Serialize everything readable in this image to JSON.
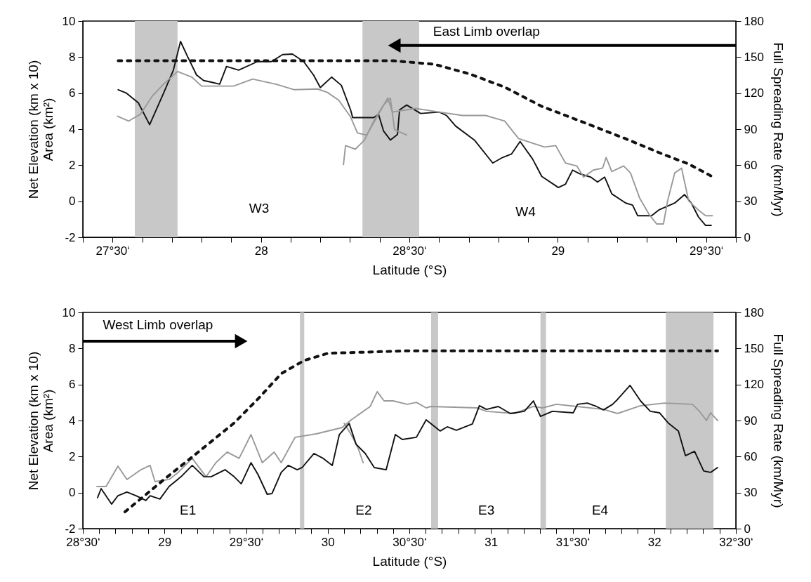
{
  "chart_data": [
    {
      "type": "line",
      "xlabel": "Latitude (°S)",
      "ylabel": "Net Elevation (km x 10)\nArea (km²)",
      "y2label": "Full Spreading Rate (km/Myr)",
      "xlim": [
        27.4,
        29.6
      ],
      "ylim": [
        -2,
        10
      ],
      "y2lim": [
        0,
        180
      ],
      "xticks": [
        {
          "value": 27.4,
          "label": null
        },
        {
          "value": 27.5,
          "label": "27°30‘"
        },
        {
          "value": 27.6,
          "label": null
        },
        {
          "value": 27.7,
          "label": null
        },
        {
          "value": 27.8,
          "label": null
        },
        {
          "value": 27.9,
          "label": null
        },
        28,
        {
          "value": 28.1,
          "label": null
        },
        {
          "value": 28.2,
          "label": null
        },
        {
          "value": 28.3,
          "label": null
        },
        {
          "value": 28.4,
          "label": null
        },
        {
          "value": 28.5,
          "label": "28°30‘"
        },
        {
          "value": 28.6,
          "label": null
        },
        {
          "value": 28.7,
          "label": null
        },
        {
          "value": 28.8,
          "label": null
        },
        {
          "value": 28.9,
          "label": null
        },
        29,
        {
          "value": 29.1,
          "label": null
        },
        {
          "value": 29.2,
          "label": null
        },
        {
          "value": 29.3,
          "label": null
        },
        {
          "value": 29.4,
          "label": null
        },
        {
          "value": 29.5,
          "label": "29°30‘"
        },
        {
          "value": 29.6,
          "label": null
        }
      ],
      "yticks": [
        -2,
        0,
        2,
        4,
        6,
        8,
        10
      ],
      "y2ticks": [
        0,
        30,
        60,
        90,
        120,
        150,
        180
      ],
      "line_style": "solid",
      "series": [
        {
          "color": "#111111",
          "x": [
            27.519,
            27.547,
            27.587,
            27.625,
            27.672,
            27.705,
            27.729,
            27.752,
            27.783,
            27.807,
            27.83,
            27.861,
            27.884,
            27.925,
            27.988,
            28.035,
            28.073,
            28.106,
            28.144,
            28.177,
            28.2,
            28.238,
            28.271,
            28.302,
            28.309,
            28.38,
            28.396,
            28.413,
            28.436,
            28.46,
            28.467,
            28.491,
            28.538,
            28.601,
            28.625,
            28.656,
            28.719,
            28.781,
            28.814,
            28.844,
            28.873,
            28.915,
            28.946,
            29.002,
            29.026,
            29.05,
            29.073,
            29.111,
            29.134,
            29.158,
            29.182,
            29.229,
            29.252,
            29.269,
            29.316,
            29.34,
            29.394,
            29.427,
            29.45,
            29.474,
            29.498,
            29.517
          ],
          "values": [
            6.19,
            6.0,
            5.46,
            4.25,
            6.0,
            7.28,
            8.87,
            8.06,
            7.01,
            6.7,
            6.62,
            6.5,
            7.48,
            7.28,
            7.75,
            7.75,
            8.14,
            8.17,
            7.75,
            7.01,
            6.31,
            6.89,
            6.43,
            5.07,
            4.64,
            4.64,
            4.83,
            3.9,
            3.4,
            3.71,
            5.07,
            5.34,
            4.87,
            4.95,
            4.76,
            4.17,
            3.4,
            2.12,
            2.43,
            2.62,
            3.32,
            2.35,
            1.38,
            0.76,
            0.95,
            1.73,
            1.53,
            1.34,
            1.07,
            1.34,
            0.41,
            -0.1,
            -0.21,
            -0.8,
            -0.8,
            -0.49,
            -0.1,
            0.37,
            -0.1,
            -0.87,
            -1.34,
            -1.34
          ]
        },
        {
          "color": "#999999",
          "x": [
            27.517,
            27.554,
            27.594,
            27.634,
            27.672,
            27.719,
            27.767,
            27.8,
            27.847,
            27.908,
            27.972,
            28.05,
            28.113,
            28.191,
            28.224,
            28.262,
            28.302,
            28.325,
            28.356,
            28.396,
            28.427,
            28.443,
            28.474,
            28.521,
            28.601,
            28.679,
            28.757,
            28.821,
            28.868,
            28.955,
            28.993,
            29.026,
            29.064,
            29.087,
            29.12,
            29.151,
            29.163,
            29.182,
            29.222,
            29.245,
            29.276,
            29.309,
            29.333,
            29.356,
            29.37,
            29.394,
            29.417,
            29.441,
            29.474,
            29.498,
            29.521
          ],
          "values": [
            4.72,
            4.45,
            4.83,
            5.84,
            6.5,
            7.2,
            6.89,
            6.39,
            6.39,
            6.39,
            6.78,
            6.5,
            6.19,
            6.23,
            6.04,
            5.61,
            4.68,
            3.79,
            3.67,
            4.83,
            5.73,
            4.95,
            5.03,
            5.15,
            4.95,
            4.76,
            4.76,
            4.45,
            3.48,
            3.01,
            3.09,
            2.12,
            1.96,
            1.34,
            1.73,
            1.84,
            2.43,
            1.65,
            1.96,
            1.57,
            0.17,
            -0.76,
            -1.26,
            -1.26,
            0.02,
            1.57,
            1.84,
            0.02,
            -0.49,
            -0.8,
            -0.8
          ]
        },
        {
          "color": "#999999",
          "x": [
            28.278,
            28.285,
            28.318,
            28.349,
            28.38,
            28.413,
            28.436,
            28.45,
            28.491
          ],
          "values": [
            2.04,
            3.09,
            2.89,
            3.4,
            4.45,
            5.34,
            5.73,
            3.98,
            3.67
          ]
        },
        {
          "color": "#111111",
          "axis": "y2",
          "line_style": "dotted",
          "x": [
            27.519,
            28.384,
            28.443,
            28.585,
            28.703,
            28.821,
            28.946,
            29.073,
            29.229,
            29.356,
            29.441,
            29.517
          ],
          "values": [
            147,
            147,
            147,
            144,
            136,
            125,
            109,
            97,
            82,
            69,
            61,
            51
          ]
        }
      ],
      "bands": [
        {
          "axis": "x",
          "from": 27.575,
          "to": 27.719,
          "color": "#c8c8c8"
        },
        {
          "axis": "x",
          "from": 28.342,
          "to": 28.533,
          "color": "#c8c8c8"
        }
      ],
      "annotations": [
        "East Limb overlap",
        "W3",
        "W4"
      ]
    },
    {
      "type": "line",
      "xlabel": "Latitude (°S)",
      "ylabel": "Net Elevation (km x 10)\nArea (km²)",
      "y2label": "Full Spreading Rate (km/Myr)",
      "xlim": [
        28.5,
        32.5
      ],
      "ylim": [
        -2,
        10
      ],
      "y2lim": [
        0,
        180
      ],
      "xticks": [
        {
          "value": 28.5,
          "label": "28°30‘"
        },
        {
          "value": 28.6,
          "label": null
        },
        {
          "value": 28.7,
          "label": null
        },
        {
          "value": 28.8,
          "label": null
        },
        {
          "value": 28.9,
          "label": null
        },
        29,
        {
          "value": 29.1,
          "label": null
        },
        {
          "value": 29.2,
          "label": null
        },
        {
          "value": 29.3,
          "label": null
        },
        {
          "value": 29.4,
          "label": null
        },
        {
          "value": 29.5,
          "label": "29°30‘"
        },
        {
          "value": 29.6,
          "label": null
        },
        {
          "value": 29.7,
          "label": null
        },
        {
          "value": 29.8,
          "label": null
        },
        {
          "value": 29.9,
          "label": null
        },
        30,
        {
          "value": 30.1,
          "label": null
        },
        {
          "value": 30.2,
          "label": null
        },
        {
          "value": 30.3,
          "label": null
        },
        {
          "value": 30.4,
          "label": null
        },
        {
          "value": 30.5,
          "label": "30°30‘"
        },
        {
          "value": 30.6,
          "label": null
        },
        {
          "value": 30.7,
          "label": null
        },
        {
          "value": 30.8,
          "label": null
        },
        {
          "value": 30.9,
          "label": null
        },
        31,
        {
          "value": 31.1,
          "label": null
        },
        {
          "value": 31.2,
          "label": null
        },
        {
          "value": 31.3,
          "label": null
        },
        {
          "value": 31.4,
          "label": null
        },
        {
          "value": 31.5,
          "label": "31°30‘"
        },
        {
          "value": 31.6,
          "label": null
        },
        {
          "value": 31.7,
          "label": null
        },
        {
          "value": 31.8,
          "label": null
        },
        {
          "value": 31.9,
          "label": null
        },
        32,
        {
          "value": 32.1,
          "label": null
        },
        {
          "value": 32.2,
          "label": null
        },
        {
          "value": 32.3,
          "label": null
        },
        {
          "value": 32.4,
          "label": null
        },
        {
          "value": 32.5,
          "label": "32°30‘"
        }
      ],
      "yticks": [
        -2,
        0,
        2,
        4,
        6,
        8,
        10
      ],
      "y2ticks": [
        0,
        30,
        60,
        90,
        120,
        150,
        180
      ],
      "line_style": "solid",
      "series": [
        {
          "color": "#999999",
          "x": [
            28.586,
            28.642,
            28.715,
            28.77,
            28.856,
            28.912,
            28.942,
            29.028,
            29.084,
            29.17,
            29.255,
            29.315,
            29.384,
            29.457,
            29.53,
            29.599,
            29.672,
            29.715,
            29.8,
            29.929,
            30.088,
            30.144,
            30.26,
            30.303,
            30.345,
            30.401,
            30.487,
            30.543,
            30.603,
            30.629,
            30.916,
            30.972,
            31.144,
            31.26,
            31.315,
            31.401,
            31.487,
            31.689,
            31.775,
            31.916,
            32.062,
            32.234,
            32.277,
            32.32,
            32.345,
            32.388
          ],
          "values": [
            0.34,
            0.34,
            1.47,
            0.73,
            1.27,
            1.51,
            0.61,
            0.73,
            1.12,
            1.9,
            0.88,
            1.66,
            2.25,
            1.9,
            3.22,
            1.66,
            2.25,
            1.66,
            3.07,
            3.26,
            3.61,
            4.04,
            4.78,
            5.6,
            5.09,
            5.09,
            4.9,
            5.01,
            4.7,
            4.78,
            4.7,
            4.51,
            4.39,
            4.78,
            4.7,
            4.9,
            4.82,
            4.62,
            4.39,
            4.82,
            4.97,
            4.9,
            4.51,
            4.0,
            4.43,
            4.0
          ]
        },
        {
          "color": "#999999",
          "x": [
            30.101,
            30.144,
            30.187,
            30.217
          ],
          "values": [
            3.84,
            3.22,
            2.44,
            1.66
          ]
        },
        {
          "color": "#111111",
          "x": [
            28.59,
            28.612,
            28.676,
            28.715,
            28.77,
            28.826,
            28.886,
            28.912,
            28.972,
            29.028,
            29.101,
            29.17,
            29.242,
            29.285,
            29.371,
            29.427,
            29.47,
            29.53,
            29.573,
            29.629,
            29.659,
            29.715,
            29.758,
            29.813,
            29.843,
            29.916,
            29.972,
            30.028,
            30.071,
            30.131,
            30.174,
            30.23,
            30.285,
            30.358,
            30.414,
            30.457,
            30.543,
            30.603,
            30.689,
            30.732,
            30.788,
            30.886,
            30.929,
            30.972,
            31.045,
            31.118,
            31.204,
            31.26,
            31.303,
            31.376,
            31.504,
            31.53,
            31.59,
            31.646,
            31.689,
            31.745,
            31.775,
            31.852,
            31.916,
            31.976,
            32.032,
            32.088,
            32.148,
            32.191,
            32.247,
            32.303,
            32.345,
            32.388
          ],
          "values": [
            -0.28,
            0.22,
            -0.64,
            -0.17,
            0.03,
            -0.17,
            -0.44,
            -0.17,
            -0.36,
            0.34,
            0.88,
            1.51,
            0.88,
            0.88,
            1.27,
            0.88,
            0.49,
            1.66,
            1.0,
            -0.09,
            -0.05,
            1.12,
            1.51,
            1.27,
            1.39,
            2.17,
            1.9,
            1.51,
            3.22,
            3.84,
            2.68,
            2.17,
            1.39,
            1.27,
            3.22,
            2.95,
            3.07,
            4.04,
            3.42,
            3.65,
            3.46,
            3.81,
            4.82,
            4.62,
            4.78,
            4.39,
            4.51,
            5.09,
            4.23,
            4.51,
            4.43,
            4.9,
            4.97,
            4.78,
            4.59,
            4.9,
            5.17,
            5.95,
            5.09,
            4.51,
            4.43,
            3.84,
            3.42,
            2.05,
            2.29,
            1.2,
            1.12,
            1.39
          ]
        },
        {
          "color": "#111111",
          "axis": "y2",
          "line_style": "dotted",
          "x": [
            28.758,
            28.998,
            29.2,
            29.427,
            29.573,
            29.715,
            29.856,
            30.002,
            30.487,
            32.388
          ],
          "values": [
            14,
            41,
            63,
            88,
            108,
            129,
            140,
            146,
            148,
            148
          ]
        }
      ],
      "bands": [
        {
          "axis": "x",
          "from": 29.83,
          "to": 29.856,
          "color": "#c8c8c8"
        },
        {
          "axis": "x",
          "from": 30.633,
          "to": 30.676,
          "color": "#c8c8c8"
        },
        {
          "axis": "x",
          "from": 31.303,
          "to": 31.337,
          "color": "#c8c8c8"
        },
        {
          "axis": "x",
          "from": 32.071,
          "to": 32.363,
          "color": "#c8c8c8"
        }
      ],
      "annotations": [
        "West Limb overlap",
        "E1",
        "E2",
        "E3",
        "E4"
      ]
    }
  ]
}
